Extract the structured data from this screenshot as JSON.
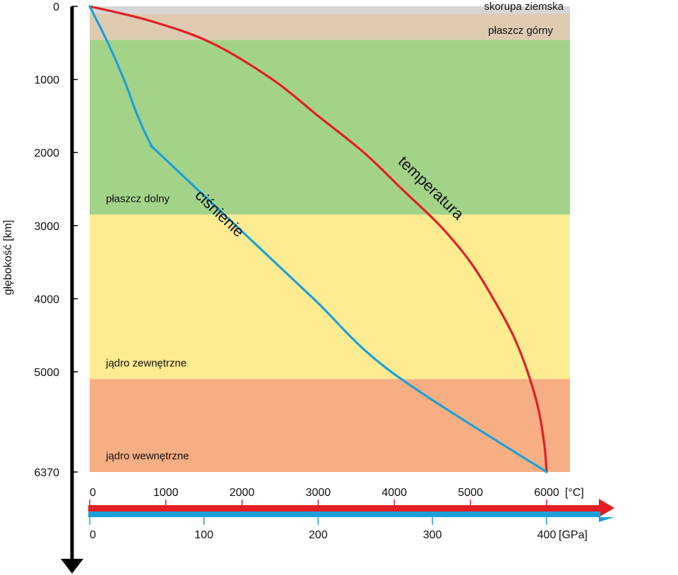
{
  "chart_data": {
    "type": "line",
    "ylabel": "głębokość [km]",
    "depth_axis": {
      "ticks": [
        0,
        1000,
        2000,
        3000,
        4000,
        5000,
        6370
      ],
      "range": [
        0,
        6370
      ],
      "direction": "down"
    },
    "temperature_axis": {
      "unit": "[°C]",
      "ticks": [
        0,
        1000,
        2000,
        3000,
        4000,
        5000,
        6000
      ],
      "range": [
        0,
        6000
      ],
      "color": "#e31e24"
    },
    "pressure_axis": {
      "unit": "[GPa]",
      "ticks": [
        0,
        100,
        200,
        300,
        400
      ],
      "range": [
        0,
        400
      ],
      "color": "#1ba1d9"
    },
    "layers": [
      {
        "label": "skorupa ziemska",
        "from": 0,
        "to": 100,
        "color": "#d6d6d8"
      },
      {
        "label": "płaszcz górny",
        "from": 100,
        "to": 460,
        "color": "#ddcab1"
      },
      {
        "label": "płaszcz dolny",
        "from": 460,
        "to": 2850,
        "color": "#a3d389"
      },
      {
        "label": "jądro zewnętrzne",
        "from": 2850,
        "to": 5100,
        "color": "#fdeb91"
      },
      {
        "label": "jądro wewnętrzne",
        "from": 5100,
        "to": 6370,
        "color": "#f7ae83"
      }
    ],
    "series": [
      {
        "name": "temperatura",
        "color": "#e31e24",
        "axis": "temperature",
        "points": [
          {
            "depth": 0,
            "value": 0
          },
          {
            "depth": 200,
            "value": 800
          },
          {
            "depth": 500,
            "value": 1600
          },
          {
            "depth": 1000,
            "value": 2400
          },
          {
            "depth": 1500,
            "value": 3000
          },
          {
            "depth": 2000,
            "value": 3600
          },
          {
            "depth": 2500,
            "value": 4100
          },
          {
            "depth": 3000,
            "value": 4600
          },
          {
            "depth": 3500,
            "value": 5000
          },
          {
            "depth": 4000,
            "value": 5300
          },
          {
            "depth": 4500,
            "value": 5560
          },
          {
            "depth": 5000,
            "value": 5750
          },
          {
            "depth": 5500,
            "value": 5890
          },
          {
            "depth": 6000,
            "value": 5970
          },
          {
            "depth": 6370,
            "value": 6000
          }
        ]
      },
      {
        "name": "ciśnienie",
        "color": "#1ba1d9",
        "axis": "pressure",
        "points": [
          {
            "depth": 0,
            "value": 0
          },
          {
            "depth": 500,
            "value": 16
          },
          {
            "depth": 1000,
            "value": 30
          },
          {
            "depth": 1500,
            "value": 42
          },
          {
            "depth": 1900,
            "value": 54
          },
          {
            "depth": 2000,
            "value": 60
          },
          {
            "depth": 3000,
            "value": 128
          },
          {
            "depth": 4000,
            "value": 196
          },
          {
            "depth": 5000,
            "value": 264
          },
          {
            "depth": 6370,
            "value": 400
          }
        ]
      }
    ]
  }
}
